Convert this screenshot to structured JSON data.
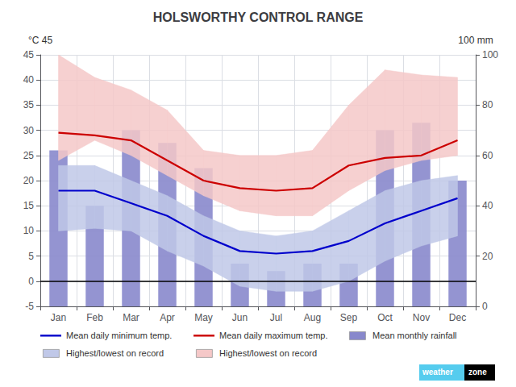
{
  "chart_data": {
    "type": "climate",
    "title": "HOLSWORTHY CONTROL RANGE",
    "ylabel": "°C 45",
    "y2label": "100 mm",
    "categories": [
      "Jan",
      "Feb",
      "Mar",
      "Apr",
      "May",
      "Jun",
      "Jul",
      "Aug",
      "Sep",
      "Oct",
      "Nov",
      "Dec"
    ],
    "series": [
      {
        "name": "Mean daily minimum temp.",
        "type": "line",
        "color": "#0000cc",
        "values": [
          18,
          18,
          15.5,
          13,
          9,
          6,
          5.5,
          6,
          8,
          11.5,
          14,
          16.5
        ]
      },
      {
        "name": "Mean daily maximum temp.",
        "type": "line",
        "color": "#cc0000",
        "values": [
          29.5,
          29,
          28,
          24,
          20,
          18.5,
          18,
          18.5,
          23,
          24.5,
          25,
          28
        ]
      },
      {
        "name": "Mean monthly rainfall",
        "type": "bar",
        "axis": "y2",
        "color": "#8888cc",
        "values": [
          62,
          40,
          70,
          65,
          55,
          17,
          14,
          17,
          17,
          70,
          73,
          50
        ]
      },
      {
        "name": "Highest/lowest on record",
        "type": "band",
        "color": "#c0c8e8",
        "low": [
          10,
          10.5,
          10,
          6,
          3,
          -1,
          -2,
          -2,
          0,
          4,
          7,
          9
        ],
        "high": [
          23,
          23,
          20,
          17,
          13,
          10,
          9,
          10,
          14,
          18,
          20,
          21
        ]
      },
      {
        "name": "Highest/lowest on record",
        "type": "band",
        "color": "#f5c8c8",
        "low": [
          24,
          28,
          25,
          21,
          17,
          14,
          13,
          13,
          18,
          22,
          24,
          25
        ],
        "high": [
          45,
          40.5,
          38,
          34,
          26,
          25,
          25,
          26,
          35,
          42,
          41,
          40.5
        ]
      }
    ],
    "ylim": [
      -5,
      45
    ],
    "yticks": [
      -5,
      0,
      5,
      10,
      15,
      20,
      25,
      30,
      35,
      40,
      45
    ],
    "y2lim": [
      0,
      100
    ],
    "y2ticks": [
      0,
      20,
      40,
      60,
      80,
      100
    ],
    "hline": 0,
    "grid": true,
    "legend": "bottom",
    "annotations": [
      "weather",
      "zone"
    ]
  }
}
